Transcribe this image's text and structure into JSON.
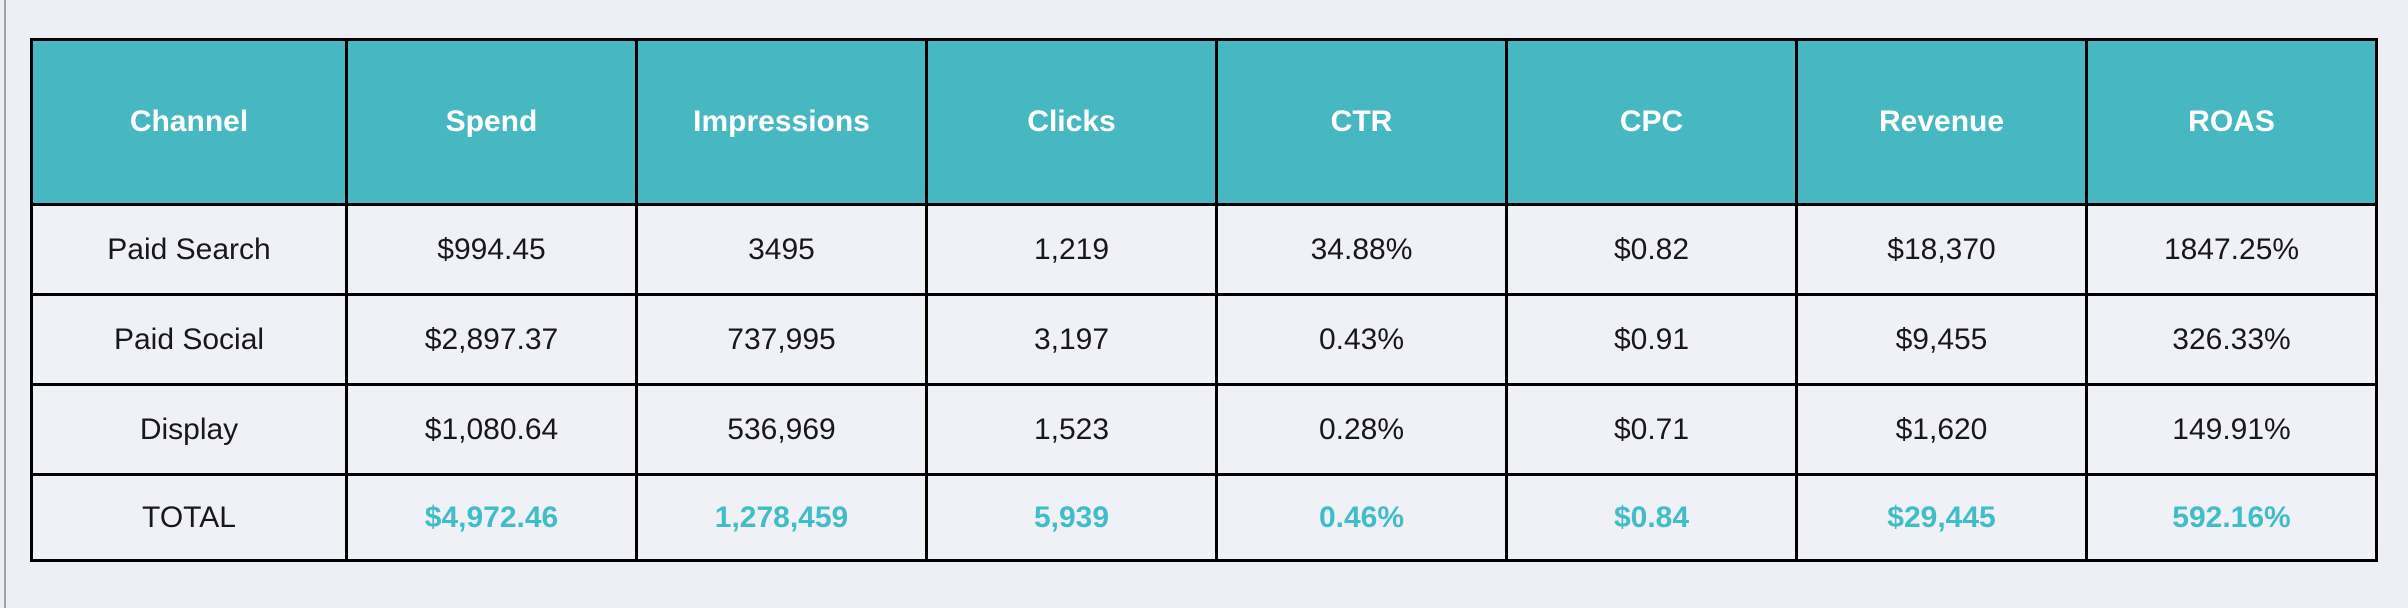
{
  "theme": {
    "page_bg": "#edeff4",
    "cell_bg": "#f0f1f6",
    "header_bg": "#47b8c2",
    "header_text": "#ffffff",
    "body_text": "#17171c",
    "accent_text": "#40bdc9",
    "border_color": "#000000"
  },
  "table": {
    "columns": [
      "Channel",
      "Spend",
      "Impressions",
      "Clicks",
      "CTR",
      "CPC",
      "Revenue",
      "ROAS"
    ],
    "rows": [
      {
        "channel": "Paid Search",
        "cells": [
          "$994.45",
          "3495",
          "1,219",
          "34.88%",
          "$0.82",
          "$18,370",
          "1847.25%"
        ],
        "emphasis": false
      },
      {
        "channel": "Paid Social",
        "cells": [
          "$2,897.37",
          "737,995",
          "3,197",
          "0.43%",
          "$0.91",
          "$9,455",
          "326.33%"
        ],
        "emphasis": false
      },
      {
        "channel": "Display",
        "cells": [
          "$1,080.64",
          "536,969",
          "1,523",
          "0.28%",
          "$0.71",
          "$1,620",
          "149.91%"
        ],
        "emphasis": false
      },
      {
        "channel": "TOTAL",
        "cells": [
          "$4,972.46",
          "1,278,459",
          "5,939",
          "0.46%",
          "$0.84",
          "$29,445",
          "592.16%"
        ],
        "emphasis": true
      }
    ]
  },
  "chart_data": {
    "type": "table",
    "columns": [
      "Channel",
      "Spend",
      "Impressions",
      "Clicks",
      "CTR",
      "CPC",
      "Revenue",
      "ROAS"
    ],
    "rows": [
      [
        "Paid Search",
        "$994.45",
        "3495",
        "1,219",
        "34.88%",
        "$0.82",
        "$18,370",
        "1847.25%"
      ],
      [
        "Paid Social",
        "$2,897.37",
        "737,995",
        "3,197",
        "0.43%",
        "$0.91",
        "$9,455",
        "326.33%"
      ],
      [
        "Display",
        "$1,080.64",
        "536,969",
        "1,523",
        "0.28%",
        "$0.71",
        "$1,620",
        "149.91%"
      ],
      [
        "TOTAL",
        "$4,972.46",
        "1,278,459",
        "5,939",
        "0.46%",
        "$0.84",
        "$29,445",
        "592.16%"
      ]
    ],
    "numeric": {
      "spend": [
        994.45,
        2897.37,
        1080.64,
        4972.46
      ],
      "impressions": [
        3495,
        737995,
        536969,
        1278459
      ],
      "clicks": [
        1219,
        3197,
        1523,
        5939
      ],
      "ctr_pct": [
        34.88,
        0.43,
        0.28,
        0.46
      ],
      "cpc": [
        0.82,
        0.91,
        0.71,
        0.84
      ],
      "revenue": [
        18370,
        9455,
        1620,
        29445
      ],
      "roas_pct": [
        1847.25,
        326.33,
        149.91,
        592.16
      ]
    }
  }
}
